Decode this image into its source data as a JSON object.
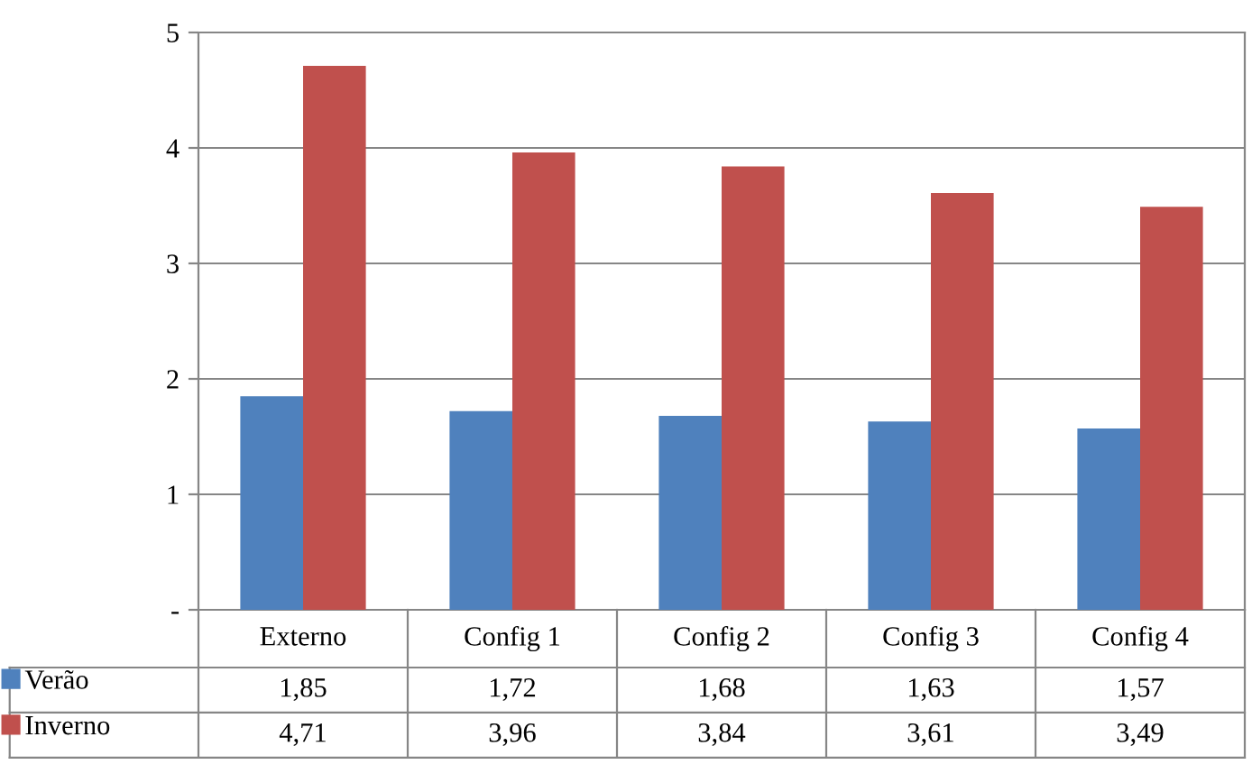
{
  "chart_data": {
    "type": "bar",
    "categories": [
      "Externo",
      "Config 1",
      "Config 2",
      "Config 3",
      "Config 4"
    ],
    "series": [
      {
        "name": "Verão",
        "color": "#4f81bd",
        "values": [
          1.85,
          1.72,
          1.68,
          1.63,
          1.57
        ],
        "value_labels": [
          "1,85",
          "1,72",
          "1,68",
          "1,63",
          "1,57"
        ]
      },
      {
        "name": "Inverno",
        "color": "#c0504d",
        "values": [
          4.71,
          3.96,
          3.84,
          3.61,
          3.49
        ],
        "value_labels": [
          "4,71",
          "3,96",
          "3,84",
          "3,61",
          "3,49"
        ]
      }
    ],
    "ylim": [
      0,
      5
    ],
    "yticks": [
      {
        "value": 0,
        "label": "-"
      },
      1,
      2,
      3,
      4,
      5
    ],
    "grid": "y",
    "legend": "bottom"
  }
}
